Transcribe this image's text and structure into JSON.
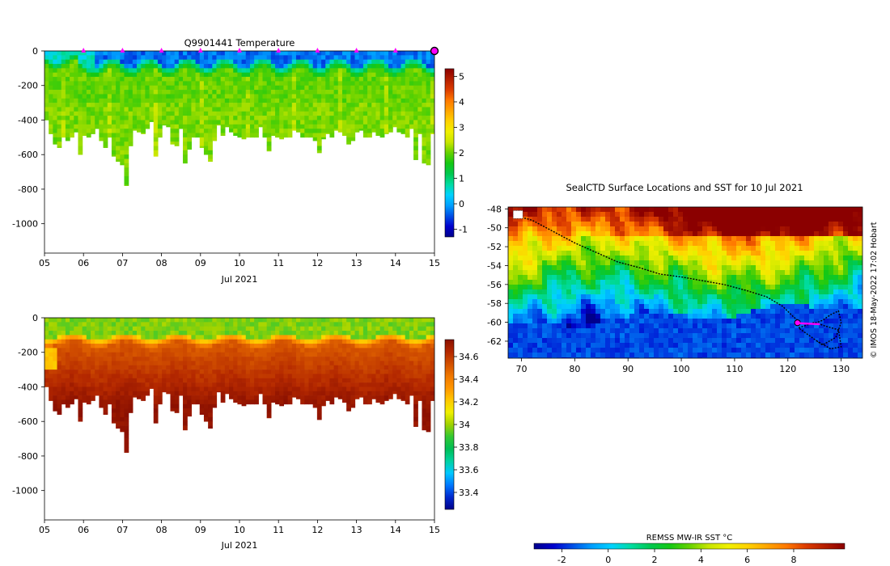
{
  "colors": {
    "temperature_scale": [
      "#00008b",
      "#0000cd",
      "#0050e6",
      "#00a0ff",
      "#00d2ff",
      "#00dca0",
      "#00c850",
      "#14c814",
      "#64d200",
      "#c8e600",
      "#f0f000",
      "#ffd200",
      "#ffa500",
      "#ff7800",
      "#dc3c00",
      "#b41e00",
      "#8b0000"
    ],
    "salinity_scale": [
      "#00008b",
      "#0028cd",
      "#0078ff",
      "#00c8ff",
      "#00d2a0",
      "#00be55",
      "#32c832",
      "#a0d200",
      "#f0f000",
      "#ffc800",
      "#ff9600",
      "#f07800",
      "#d25000",
      "#b42800",
      "#8b1000"
    ],
    "marker": "#ff00ff",
    "track": "#000000"
  },
  "chart_data": [
    {
      "type": "heatmap",
      "name": "temperature-section",
      "title": "Q9901441  Temperature",
      "xlabel": "Jul 2021",
      "ylabel": "",
      "x_ticks": [
        "05",
        "06",
        "07",
        "08",
        "09",
        "10",
        "11",
        "12",
        "13",
        "14",
        "15"
      ],
      "y_ticks": [
        "0",
        "-200",
        "-400",
        "-600",
        "-800",
        "-1000"
      ],
      "ylim": [
        -1170,
        0
      ],
      "colorbar_ticks": [
        "-1",
        "0",
        "1",
        "2",
        "3",
        "4",
        "5"
      ],
      "colorbar_range": [
        -1.3,
        5.3
      ],
      "profile_day_markers": [
        6,
        7,
        8,
        9,
        10,
        11,
        12,
        13,
        14,
        15
      ],
      "max_depths": [
        400,
        480,
        540,
        560,
        500,
        520,
        500,
        470,
        600,
        490,
        500,
        480,
        450,
        520,
        560,
        500,
        610,
        640,
        660,
        780,
        550,
        460,
        470,
        480,
        450,
        410,
        610,
        500,
        430,
        440,
        540,
        550,
        450,
        650,
        570,
        500,
        500,
        560,
        600,
        640,
        520,
        430,
        490,
        440,
        470,
        490,
        500,
        510,
        500,
        500,
        500,
        440,
        500,
        580,
        490,
        500,
        510,
        500,
        500,
        460,
        470,
        500,
        500,
        500,
        520,
        590,
        510,
        480,
        500,
        460,
        470,
        490,
        540,
        520,
        470,
        460,
        500,
        500,
        470,
        490,
        500,
        480,
        470,
        440,
        470,
        480,
        500,
        450,
        630,
        480,
        650,
        660,
        480
      ]
    },
    {
      "type": "heatmap",
      "name": "salinity-section",
      "title": "",
      "xlabel": "Jul 2021",
      "ylabel": "",
      "x_ticks": [
        "05",
        "06",
        "07",
        "08",
        "09",
        "10",
        "11",
        "12",
        "13",
        "14",
        "15"
      ],
      "y_ticks": [
        "0",
        "-200",
        "-400",
        "-600",
        "-800",
        "-1000"
      ],
      "ylim": [
        -1170,
        0
      ],
      "colorbar_ticks": [
        "33.4",
        "33.6",
        "33.8",
        "34",
        "34.2",
        "34.4",
        "34.6"
      ],
      "colorbar_range": [
        33.25,
        34.75
      ]
    },
    {
      "type": "heatmap",
      "name": "sst-map",
      "title": "SealCTD Surface Locations and SST for 10 Jul 2021",
      "x_ticks": [
        "70",
        "80",
        "90",
        "100",
        "110",
        "120",
        "130"
      ],
      "x_values": [
        70,
        80,
        90,
        100,
        110,
        120,
        130
      ],
      "y_ticks": [
        "-48",
        "-50",
        "-52",
        "-54",
        "-56",
        "-58",
        "-60",
        "-62"
      ],
      "y_values": [
        -48,
        -50,
        -52,
        -54,
        -56,
        -58,
        -60,
        -62
      ],
      "xlim": [
        67.5,
        134
      ],
      "ylim": [
        -63.8,
        -47.8
      ],
      "colorbar_label": "REMSS MW-IR SST °C",
      "colorbar_ticks": [
        "-2",
        "0",
        "2",
        "4",
        "6",
        "8"
      ],
      "colorbar_values": [
        -2,
        0,
        2,
        4,
        6,
        8
      ],
      "colorbar_range": [
        -3.2,
        10.2
      ],
      "credit": "© IMOS 18-May-2022 17:02 Hobart",
      "track": [
        [
          69.5,
          -48.8
        ],
        [
          72,
          -49.2
        ],
        [
          76,
          -50.4
        ],
        [
          80,
          -51.6
        ],
        [
          84,
          -52.6
        ],
        [
          88,
          -53.6
        ],
        [
          92,
          -54.2
        ],
        [
          96,
          -54.9
        ],
        [
          100,
          -55.2
        ],
        [
          104,
          -55.6
        ],
        [
          108,
          -56
        ],
        [
          112,
          -56.6
        ],
        [
          116,
          -57.3
        ],
        [
          119,
          -58.3
        ],
        [
          121,
          -59.4
        ],
        [
          122.5,
          -60.1
        ],
        [
          124.5,
          -60.2
        ],
        [
          126.5,
          -59.8
        ],
        [
          128,
          -59.2
        ],
        [
          129.5,
          -58.8
        ],
        [
          130,
          -60
        ],
        [
          129,
          -61.6
        ],
        [
          126.5,
          -62.4
        ],
        [
          124,
          -61.4
        ],
        [
          122,
          -60.6
        ],
        [
          125,
          -60
        ],
        [
          127,
          -60.4
        ],
        [
          129.5,
          -60.8
        ],
        [
          130,
          -62.6
        ],
        [
          128,
          -62.8
        ],
        [
          125.5,
          -62
        ]
      ]
    }
  ]
}
